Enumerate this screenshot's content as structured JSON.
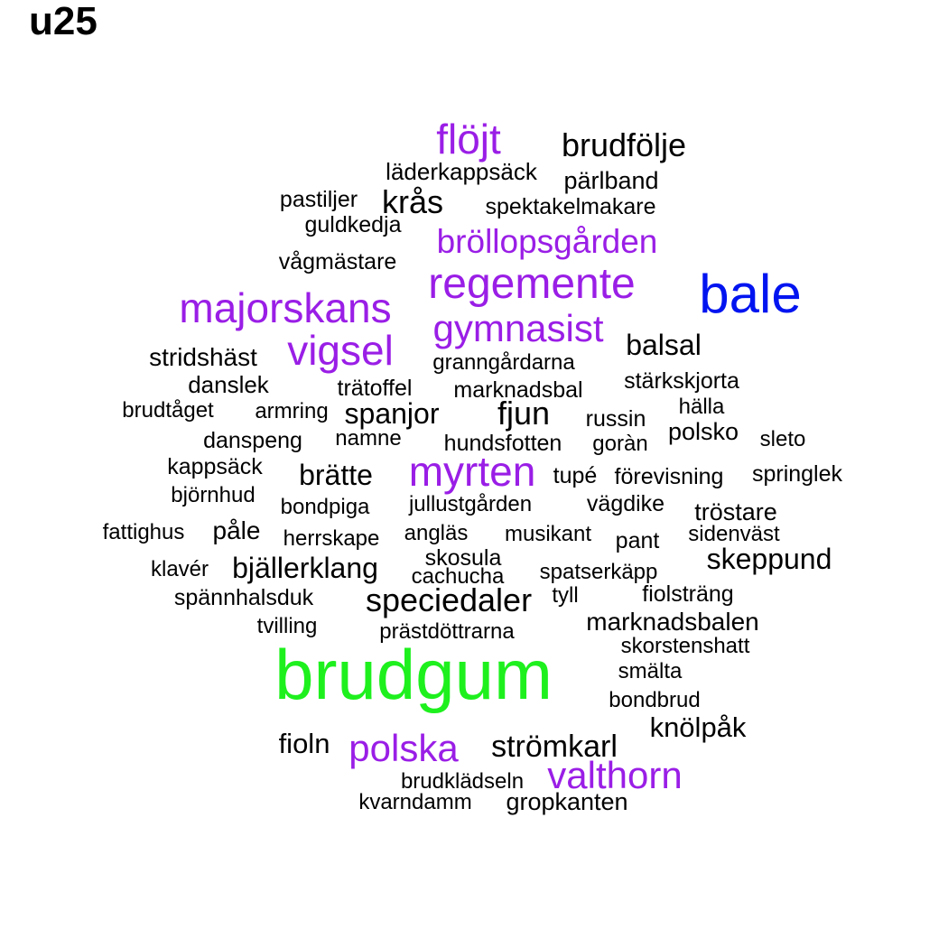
{
  "title": "u25",
  "colors": {
    "black": "#000000",
    "purple": "#9a1ee6",
    "blue": "#0014f0",
    "green": "#1ef01e"
  },
  "words": [
    {
      "text": "flöjt",
      "color": "purple"
    },
    {
      "text": "brudfölje",
      "color": "black"
    },
    {
      "text": "läderkappsäck",
      "color": "black"
    },
    {
      "text": "pärlband",
      "color": "black"
    },
    {
      "text": "pastiljer",
      "color": "black"
    },
    {
      "text": "krås",
      "color": "black"
    },
    {
      "text": "spektakelmakare",
      "color": "black"
    },
    {
      "text": "guldkedja",
      "color": "black"
    },
    {
      "text": "bröllopsgården",
      "color": "purple"
    },
    {
      "text": "vågmästare",
      "color": "black"
    },
    {
      "text": "regemente",
      "color": "purple"
    },
    {
      "text": "bale",
      "color": "blue"
    },
    {
      "text": "majorskans",
      "color": "purple"
    },
    {
      "text": "gymnasist",
      "color": "purple"
    },
    {
      "text": "vigsel",
      "color": "purple"
    },
    {
      "text": "balsal",
      "color": "black"
    },
    {
      "text": "stridshäst",
      "color": "black"
    },
    {
      "text": "granngårdarna",
      "color": "black"
    },
    {
      "text": "danslek",
      "color": "black"
    },
    {
      "text": "trätoffel",
      "color": "black"
    },
    {
      "text": "marknadsbal",
      "color": "black"
    },
    {
      "text": "stärkskjorta",
      "color": "black"
    },
    {
      "text": "hälla",
      "color": "black"
    },
    {
      "text": "brudtåget",
      "color": "black"
    },
    {
      "text": "armring",
      "color": "black"
    },
    {
      "text": "spanjor",
      "color": "black"
    },
    {
      "text": "fjun",
      "color": "black"
    },
    {
      "text": "russin",
      "color": "black"
    },
    {
      "text": "polsko",
      "color": "black"
    },
    {
      "text": "sleto",
      "color": "black"
    },
    {
      "text": "danspeng",
      "color": "black"
    },
    {
      "text": "namne",
      "color": "black"
    },
    {
      "text": "hundsfotten",
      "color": "black"
    },
    {
      "text": "goràn",
      "color": "black"
    },
    {
      "text": "kappsäck",
      "color": "black"
    },
    {
      "text": "brätte",
      "color": "black"
    },
    {
      "text": "myrten",
      "color": "purple"
    },
    {
      "text": "tupé",
      "color": "black"
    },
    {
      "text": "förevisning",
      "color": "black"
    },
    {
      "text": "springlek",
      "color": "black"
    },
    {
      "text": "björnhud",
      "color": "black"
    },
    {
      "text": "bondpiga",
      "color": "black"
    },
    {
      "text": "jullustgården",
      "color": "black"
    },
    {
      "text": "vägdike",
      "color": "black"
    },
    {
      "text": "tröstare",
      "color": "black"
    },
    {
      "text": "fattighus",
      "color": "black"
    },
    {
      "text": "påle",
      "color": "black"
    },
    {
      "text": "angläs",
      "color": "black"
    },
    {
      "text": "herrskape",
      "color": "black"
    },
    {
      "text": "musikant",
      "color": "black"
    },
    {
      "text": "pant",
      "color": "black"
    },
    {
      "text": "sidenväst",
      "color": "black"
    },
    {
      "text": "skosula",
      "color": "black"
    },
    {
      "text": "skeppund",
      "color": "black"
    },
    {
      "text": "klavér",
      "color": "black"
    },
    {
      "text": "bjällerklang",
      "color": "black"
    },
    {
      "text": "cachucha",
      "color": "black"
    },
    {
      "text": "spatserkäpp",
      "color": "black"
    },
    {
      "text": "spännhalsduk",
      "color": "black"
    },
    {
      "text": "speciedaler",
      "color": "black"
    },
    {
      "text": "tyll",
      "color": "black"
    },
    {
      "text": "fiolsträng",
      "color": "black"
    },
    {
      "text": "tvilling",
      "color": "black"
    },
    {
      "text": "prästdöttrarna",
      "color": "black"
    },
    {
      "text": "marknadsbalen",
      "color": "black"
    },
    {
      "text": "skorstenshatt",
      "color": "black"
    },
    {
      "text": "brudgum",
      "color": "green"
    },
    {
      "text": "smälta",
      "color": "black"
    },
    {
      "text": "bondbrud",
      "color": "black"
    },
    {
      "text": "knölpåk",
      "color": "black"
    },
    {
      "text": "fioln",
      "color": "black"
    },
    {
      "text": "polska",
      "color": "purple"
    },
    {
      "text": "strömkarl",
      "color": "black"
    },
    {
      "text": "valthorn",
      "color": "purple"
    },
    {
      "text": "brudklädseln",
      "color": "black"
    },
    {
      "text": "kvarndamm",
      "color": "black"
    },
    {
      "text": "gropkanten",
      "color": "black"
    }
  ]
}
